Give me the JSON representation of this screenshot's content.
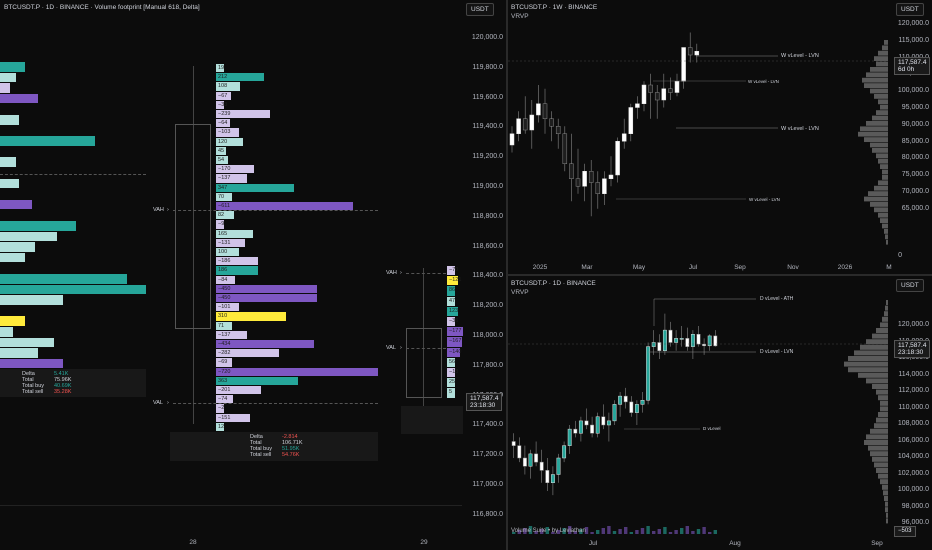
{
  "colors": {
    "bg": "#0c0c0c",
    "up": "#26a69a",
    "down_footprint": "#7e57c2",
    "teal_light": "#b2dfdb",
    "purple_light": "#d1c4e9",
    "highlight": "#ffeb3b",
    "candle_up": "#ffffff",
    "candle_down": "#1e1e1e"
  },
  "left": {
    "title": "BTCUSDT.P · 1D · BINANCE · Volume footprint [Manual 618, Delta]",
    "currency": "USDT",
    "price_ticks": [
      "120,000.0",
      "119,800.0",
      "119,600.0",
      "119,400.0",
      "119,200.0",
      "119,000.0",
      "118,800.0",
      "118,600.0",
      "118,400.0",
      "118,200.0",
      "118,000.0",
      "117,800.0",
      "117,600.0",
      "117,400.0",
      "117,200.0",
      "117,000.0",
      "116,800.0"
    ],
    "x_ticks": [
      "28",
      "29"
    ],
    "current_price": "117,587.4",
    "countdown": "23:18:30",
    "vah": "VAH",
    "val": "VAL",
    "summary_prev": {
      "delta_label": "Delta",
      "delta": "5.41K",
      "total_label": "Total",
      "total": "75.96K",
      "buy_label": "Total buy",
      "buy": "40.69K",
      "sell_label": "Total sell",
      "sell": "35.28K"
    },
    "summary_main": {
      "delta_label": "Delta",
      "delta": "-2.814",
      "total_label": "Total",
      "total": "106.71K",
      "buy_label": "Total buy",
      "buy": "51.95K",
      "sell_label": "Total sell",
      "sell": "54.76K"
    },
    "footprint_main": [
      {
        "label": "19",
        "v": 19,
        "c": "teal_light"
      },
      {
        "label": "212",
        "v": 212,
        "c": "up"
      },
      {
        "label": "108",
        "v": 108,
        "c": "teal_light"
      },
      {
        "label": "−67",
        "v": 67,
        "c": "purple_light"
      },
      {
        "label": "−33",
        "v": 33,
        "c": "purple_light"
      },
      {
        "label": "−239",
        "v": 239,
        "c": "purple_light"
      },
      {
        "label": "−64",
        "v": 64,
        "c": "purple_light"
      },
      {
        "label": "−103",
        "v": 103,
        "c": "purple_light"
      },
      {
        "label": "120",
        "v": 120,
        "c": "teal_light"
      },
      {
        "label": "45",
        "v": 45,
        "c": "teal_light"
      },
      {
        "label": "54",
        "v": 54,
        "c": "teal_light"
      },
      {
        "label": "−170",
        "v": 170,
        "c": "purple_light"
      },
      {
        "label": "−137",
        "v": 137,
        "c": "purple_light"
      },
      {
        "label": "347",
        "v": 347,
        "c": "up"
      },
      {
        "label": "70",
        "v": 70,
        "c": "teal_light"
      },
      {
        "label": "−611",
        "v": 611,
        "c": "down_footprint"
      },
      {
        "label": "82",
        "v": 82,
        "c": "teal_light"
      },
      {
        "label": "−9",
        "v": 9,
        "c": "purple_light"
      },
      {
        "label": "165",
        "v": 165,
        "c": "teal_light"
      },
      {
        "label": "−131",
        "v": 131,
        "c": "purple_light"
      },
      {
        "label": "100",
        "v": 100,
        "c": "teal_light"
      },
      {
        "label": "−186",
        "v": 186,
        "c": "purple_light"
      },
      {
        "label": "186",
        "v": 186,
        "c": "up"
      },
      {
        "label": "−84",
        "v": 84,
        "c": "purple_light"
      },
      {
        "label": "−450",
        "v": 450,
        "c": "down_footprint"
      },
      {
        "label": "−450",
        "v": 450,
        "c": "down_footprint"
      },
      {
        "label": "−101",
        "v": 101,
        "c": "purple_light"
      },
      {
        "label": "310",
        "v": 310,
        "c": "highlight"
      },
      {
        "label": "71",
        "v": 71,
        "c": "teal_light"
      },
      {
        "label": "−137",
        "v": 137,
        "c": "purple_light"
      },
      {
        "label": "−434",
        "v": 434,
        "c": "down_footprint"
      },
      {
        "label": "−282",
        "v": 282,
        "c": "purple_light"
      },
      {
        "label": "−69",
        "v": 69,
        "c": "purple_light"
      },
      {
        "label": "−720",
        "v": 720,
        "c": "down_footprint"
      },
      {
        "label": "363",
        "v": 363,
        "c": "up"
      },
      {
        "label": "−201",
        "v": 201,
        "c": "purple_light"
      },
      {
        "label": "−74",
        "v": 74,
        "c": "purple_light"
      },
      {
        "label": "−2",
        "v": 2,
        "c": "purple_light"
      },
      {
        "label": "−151",
        "v": 151,
        "c": "purple_light"
      },
      {
        "label": "12",
        "v": 12,
        "c": "teal_light"
      }
    ],
    "footprint_next": [
      {
        "label": "−70",
        "v": 70,
        "c": "purple_light"
      },
      {
        "label": "−121",
        "v": 121,
        "c": "highlight"
      },
      {
        "label": "86",
        "v": 86,
        "c": "up"
      },
      {
        "label": "47",
        "v": 47,
        "c": "teal_light"
      },
      {
        "label": "123",
        "v": 123,
        "c": "up"
      },
      {
        "label": "−36",
        "v": 36,
        "c": "purple_light"
      },
      {
        "label": "−177",
        "v": 177,
        "c": "down_footprint"
      },
      {
        "label": "−167",
        "v": 167,
        "c": "down_footprint"
      },
      {
        "label": "−140",
        "v": 140,
        "c": "down_footprint"
      },
      {
        "label": "56",
        "v": 56,
        "c": "teal_light"
      },
      {
        "label": "−13",
        "v": 13,
        "c": "purple_light"
      },
      {
        "label": "25",
        "v": 25,
        "c": "teal_light"
      },
      {
        "label": "5",
        "v": 5,
        "c": "teal_light"
      }
    ],
    "footprint_prev": [
      {
        "v": 40,
        "c": "up"
      },
      {
        "v": 25,
        "c": "teal_light"
      },
      {
        "v": 15,
        "c": "purple_light"
      },
      {
        "v": 60,
        "c": "down_footprint"
      },
      {
        "v": 0,
        "c": "up"
      },
      {
        "v": 30,
        "c": "teal_light"
      },
      {
        "v": 0,
        "c": "up"
      },
      {
        "v": 150,
        "c": "up"
      },
      {
        "v": 0,
        "c": "up"
      },
      {
        "v": 25,
        "c": "teal_light"
      },
      {
        "v": 0,
        "c": "up"
      },
      {
        "v": 30,
        "c": "teal_light"
      },
      {
        "v": 0,
        "c": "up"
      },
      {
        "v": 50,
        "c": "down_footprint"
      },
      {
        "v": 0,
        "c": "up"
      },
      {
        "v": 120,
        "c": "up"
      },
      {
        "v": 90,
        "c": "teal_light"
      },
      {
        "v": 55,
        "c": "teal_light"
      },
      {
        "v": 40,
        "c": "teal_light"
      },
      {
        "v": 0,
        "c": "up"
      },
      {
        "v": 200,
        "c": "up"
      },
      {
        "v": 230,
        "c": "up"
      },
      {
        "v": 100,
        "c": "teal_light"
      },
      {
        "v": 0,
        "c": "up"
      },
      {
        "v": 40,
        "c": "highlight"
      },
      {
        "v": 20,
        "c": "teal_light"
      },
      {
        "v": 85,
        "c": "teal_light"
      },
      {
        "v": 60,
        "c": "teal_light"
      },
      {
        "v": 100,
        "c": "down_footprint"
      }
    ]
  },
  "right_top": {
    "title": "BTCUSDT.P · 1W · BINANCE",
    "indicator": "VRVP",
    "currency": "USDT",
    "price_ticks": [
      "120,000.0",
      "115,000.0",
      "110,000.0",
      "105,000.0",
      "100,000.0",
      "95,000.0",
      "90,000.0",
      "85,000.0",
      "80,000.0",
      "75,000.0",
      "70,000.0",
      "65,000.0",
      "0"
    ],
    "x_ticks": [
      "2025",
      "Mar",
      "May",
      "Jul",
      "Sep",
      "Nov",
      "2026",
      "M"
    ],
    "current_price": "117,587.4",
    "countdown": "6d 0h",
    "levels": [
      "W vLevel - LVN",
      "W vLevel - LVN",
      "W vLevel - LVN",
      "W vLevel - LVN"
    ]
  },
  "right_bottom": {
    "title": "BTCUSDT.P · 1D · BINANCE",
    "indicator": "VRVP",
    "currency": "USDT",
    "price_ticks": [
      "120,000.0",
      "118,000.0",
      "116,000.0",
      "114,000.0",
      "112,000.0",
      "110,000.0",
      "108,000.0",
      "106,000.0",
      "104,000.0",
      "102,000.0",
      "100,000.0",
      "98,000.0",
      "96,000.0"
    ],
    "x_ticks": [
      "Jul",
      "Aug",
      "Sep"
    ],
    "current_price": "117,587.4",
    "countdown": "23:18:30",
    "levels": [
      "D vLevel - ATH",
      "D vLevel - LVN",
      "D vLevel"
    ],
    "volume_label": "Volume Suite • by Leviathan",
    "volume_value": "−503"
  }
}
